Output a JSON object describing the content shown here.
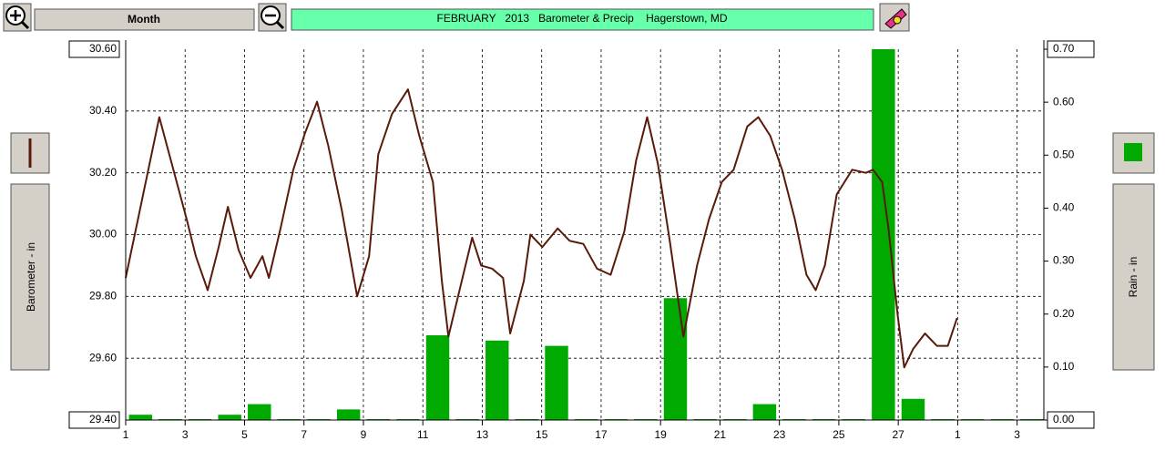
{
  "chart_data": {
    "type": "line",
    "title": "FEBRUARY   2013   Barometer & Precip    Hagerstown, MD",
    "button_label": "Month",
    "ylabel": "Barometer - in",
    "y2label": "Rain - in",
    "grid": true,
    "xlim": [
      1,
      31.9
    ],
    "xticks": [
      1,
      3,
      5,
      7,
      9,
      11,
      13,
      15,
      17,
      19,
      21,
      23,
      25,
      27,
      {
        "value": 29,
        "label": "1"
      },
      {
        "value": 31,
        "label": "3"
      }
    ],
    "ylim": [
      29.4,
      30.6
    ],
    "yticks": [
      {
        "value": 29.4,
        "label": "29.40"
      },
      {
        "value": 29.6,
        "label": "29.60"
      },
      {
        "value": 29.8,
        "label": "29.80"
      },
      {
        "value": 30.0,
        "label": "30.00"
      },
      {
        "value": 30.2,
        "label": "30.20"
      },
      {
        "value": 30.4,
        "label": "30.40"
      },
      {
        "value": 30.6,
        "label": "30.60"
      }
    ],
    "y2lim": [
      0,
      0.7
    ],
    "y2ticks": [
      {
        "value": 0,
        "label": "0.00"
      },
      {
        "value": 0.1,
        "label": "0.10"
      },
      {
        "value": 0.2,
        "label": "0.20"
      },
      {
        "value": 0.3,
        "label": "0.30"
      },
      {
        "value": 0.4,
        "label": "0.40"
      },
      {
        "value": 0.5,
        "label": "0.50"
      },
      {
        "value": 0.6,
        "label": "0.60"
      },
      {
        "value": 0.7,
        "label": "0.70"
      }
    ],
    "series": [
      {
        "type": "line",
        "axis": "y",
        "color": "#5a1a0a",
        "x": [
          1,
          2.13,
          3.05,
          3.36,
          3.76,
          4.13,
          4.44,
          4.8,
          5.2,
          5.6,
          5.82,
          6.21,
          6.64,
          7.04,
          7.44,
          7.81,
          8.27,
          8.79,
          9.19,
          9.5,
          9.96,
          10.5,
          10.88,
          11.34,
          11.64,
          11.86,
          12.26,
          12.66,
          12.96,
          13.33,
          13.7,
          13.94,
          14.4,
          14.62,
          15.02,
          15.54,
          15.94,
          16.4,
          16.86,
          17.32,
          17.78,
          18.18,
          18.55,
          18.91,
          19.31,
          19.77,
          20.23,
          20.63,
          21.06,
          21.46,
          21.92,
          22.29,
          22.69,
          23.09,
          23.52,
          23.91,
          24.22,
          24.53,
          24.93,
          25.45,
          25.91,
          26.15,
          26.46,
          26.67,
          26.98,
          27.2,
          27.5,
          27.9,
          28.3,
          28.67,
          28.98
        ],
        "values": [
          29.86,
          30.38,
          30.05,
          29.93,
          29.82,
          29.96,
          30.09,
          29.95,
          29.86,
          29.93,
          29.86,
          30.02,
          30.21,
          30.33,
          30.43,
          30.29,
          30.08,
          29.8,
          29.93,
          30.26,
          30.39,
          30.47,
          30.32,
          30.17,
          29.85,
          29.67,
          29.83,
          29.99,
          29.9,
          29.89,
          29.86,
          29.68,
          29.85,
          30.0,
          29.96,
          30.02,
          29.98,
          29.97,
          29.89,
          29.87,
          30.01,
          30.24,
          30.38,
          30.23,
          29.98,
          29.67,
          29.9,
          30.05,
          30.17,
          30.21,
          30.35,
          30.38,
          30.32,
          30.21,
          30.05,
          29.87,
          29.82,
          29.9,
          30.13,
          30.21,
          30.2,
          30.21,
          30.17,
          30.02,
          29.74,
          29.57,
          29.63,
          29.68,
          29.64,
          29.64,
          29.73
        ]
      },
      {
        "type": "bar",
        "axis": "y2",
        "color": "#00aa00",
        "x": [
          1,
          2,
          3,
          4,
          5,
          6,
          7,
          8,
          9,
          10,
          11,
          12,
          13,
          14,
          15,
          16,
          17,
          18,
          19,
          20,
          21,
          22,
          23,
          24,
          25,
          26,
          27,
          28,
          29,
          30,
          31
        ],
        "values": [
          0.01,
          0,
          0,
          0.01,
          0.03,
          0,
          0,
          0.02,
          0,
          0,
          0.16,
          0,
          0.15,
          0,
          0.14,
          0,
          0,
          0,
          0.23,
          0,
          0,
          0.03,
          0,
          0,
          0,
          0.7,
          0.04,
          0,
          0,
          0,
          0
        ]
      }
    ]
  }
}
